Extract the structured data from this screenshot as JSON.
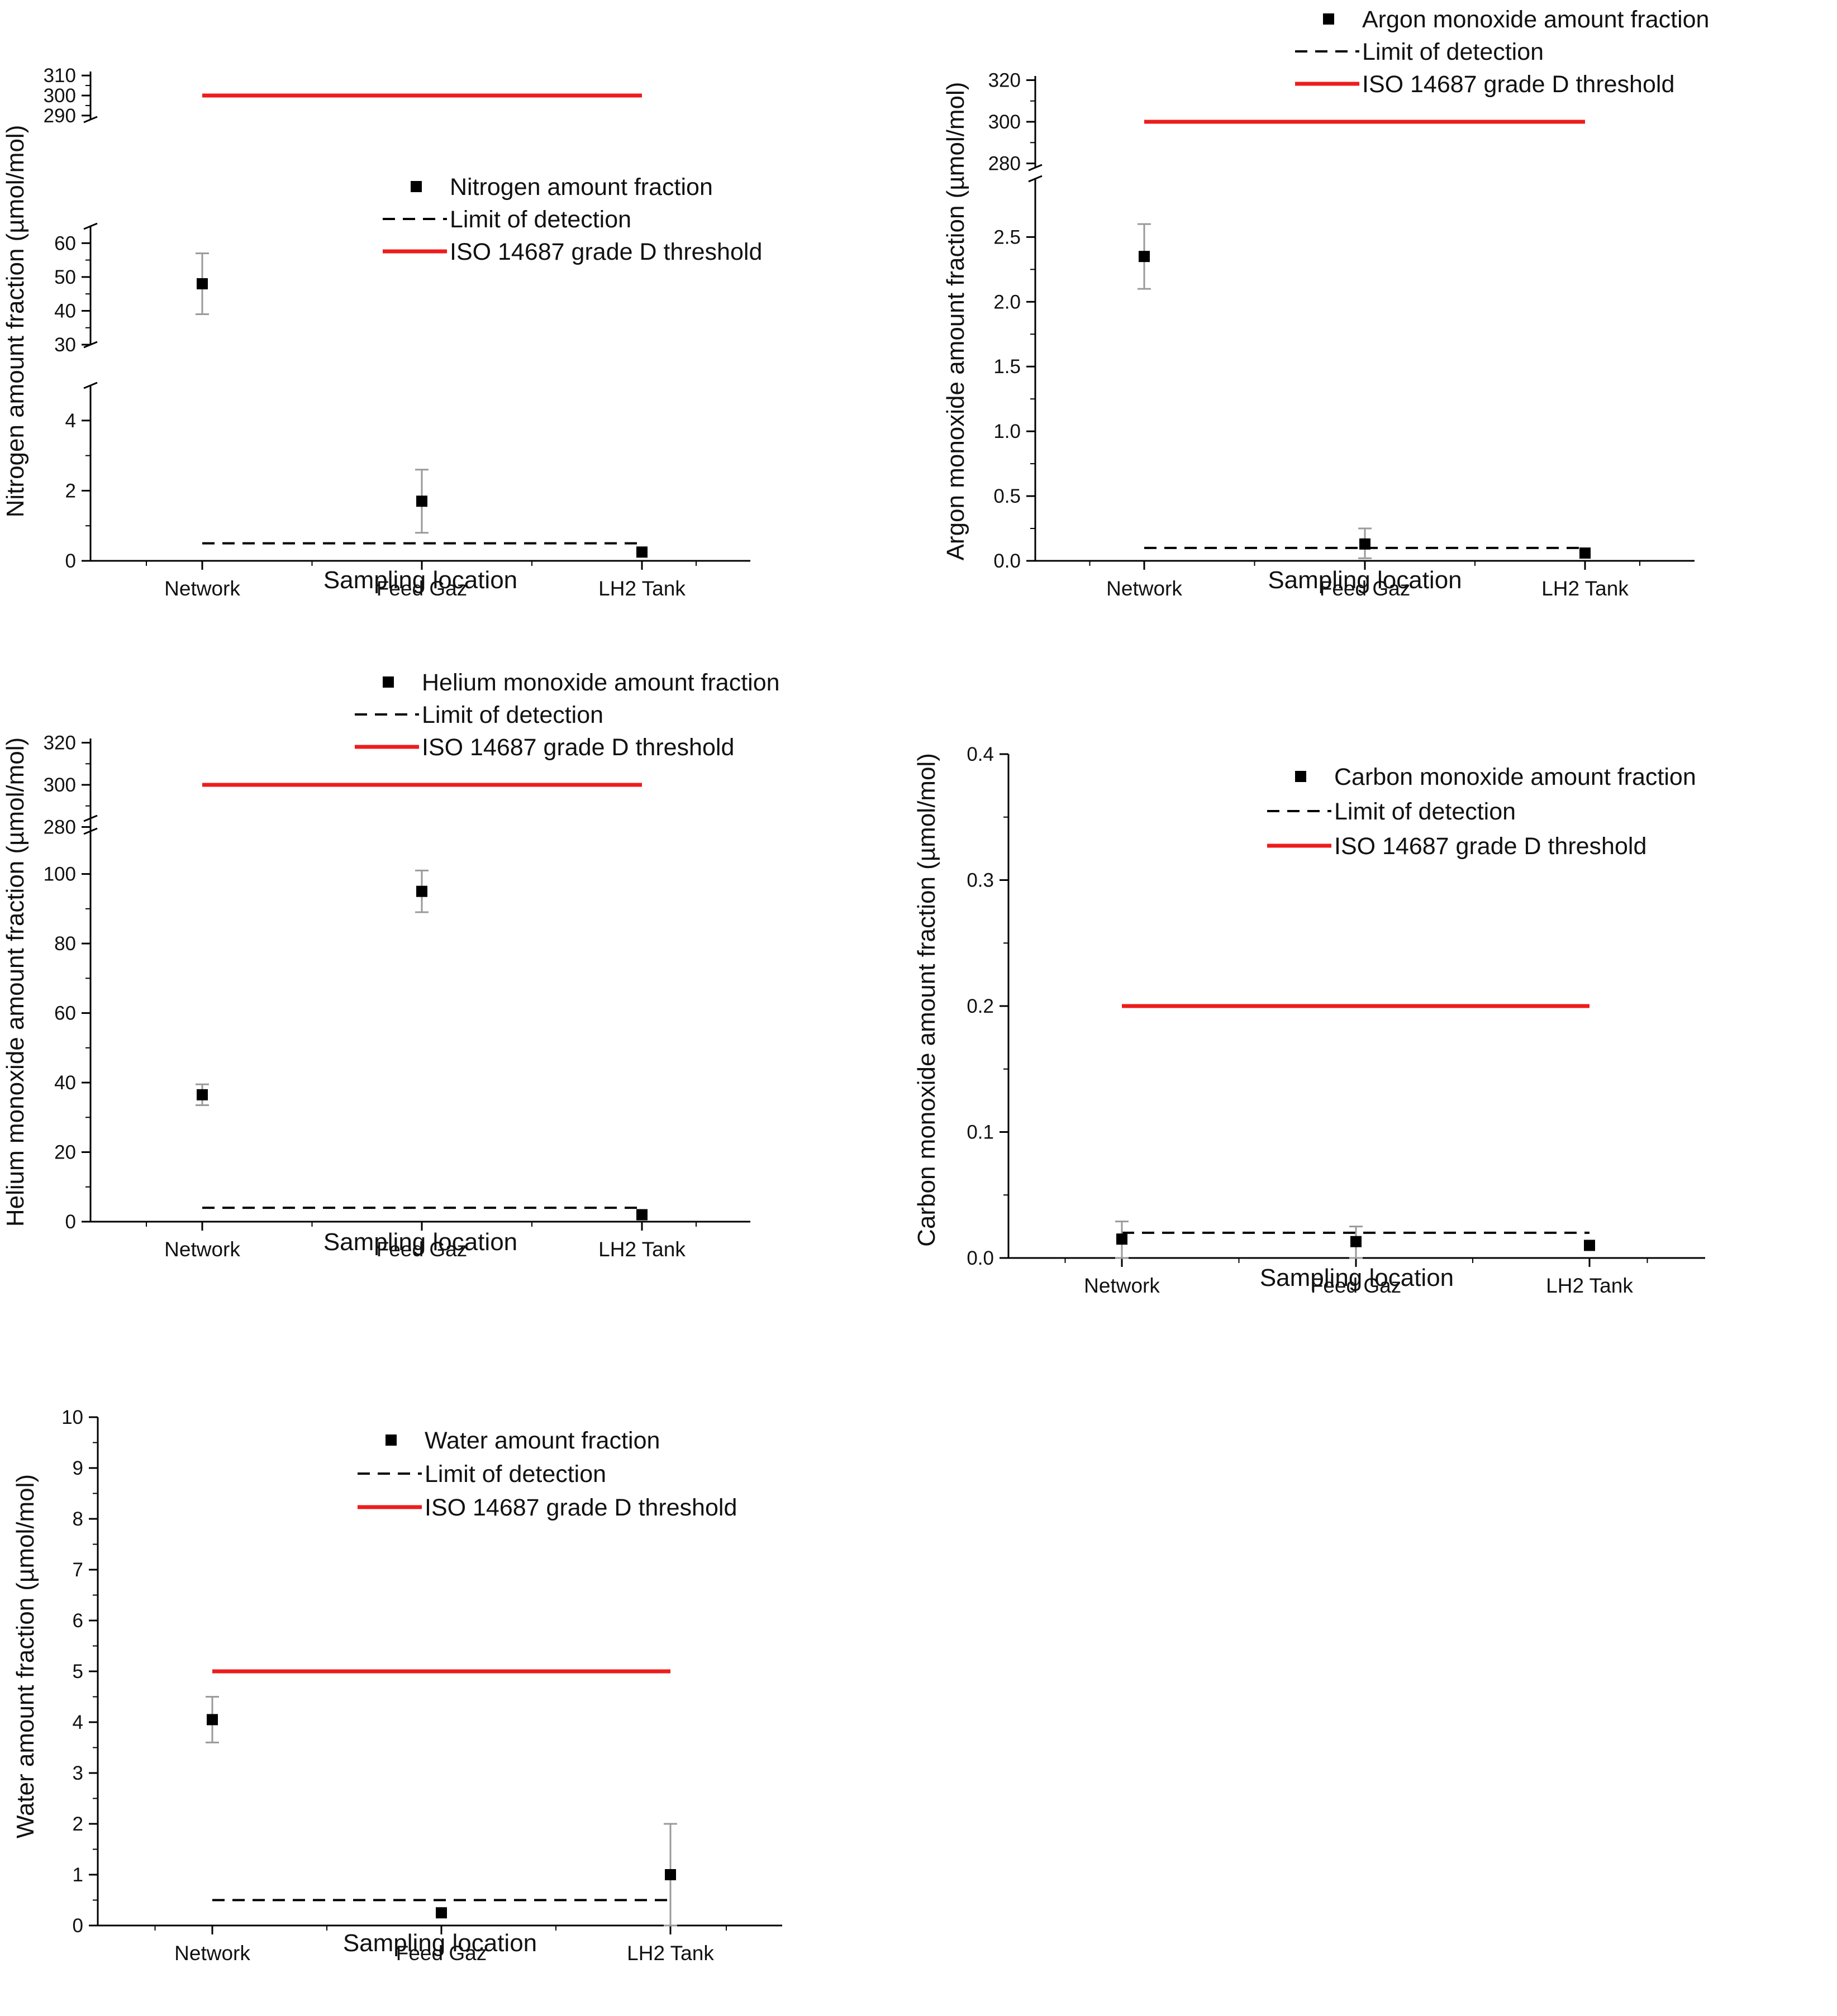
{
  "colors": {
    "threshold": "#ee1c1c",
    "axis": "#000000",
    "marker": "#000000",
    "errorbar": "#9a9a9a",
    "lod": "#000000"
  },
  "legend_labels": {
    "lod": "Limit of detection",
    "threshold": "ISO 14687 grade D threshold"
  },
  "chart_data": [
    {
      "id": "nitrogen",
      "type": "scatter",
      "panel_label": "Nitrogen",
      "categories": [
        "Network",
        "Feed Gaz",
        "LH2 Tank"
      ],
      "xlabel": "Sampling location",
      "ylabel": "Nitrogen amount fraction (µmol/mol)",
      "legend_series": "Nitrogen amount fraction",
      "legend_position": "upper-middle",
      "series": [
        {
          "name": "Nitrogen amount fraction",
          "values": [
            48,
            1.7,
            0.25
          ],
          "err_low": [
            39,
            0.8,
            null
          ],
          "err_high": [
            57,
            2.6,
            null
          ]
        }
      ],
      "limit_of_detection": 0.5,
      "threshold": 300,
      "y_segments": [
        {
          "ylim": [
            0,
            5
          ],
          "ticks": [
            0,
            2,
            4
          ]
        },
        {
          "ylim": [
            30,
            65
          ],
          "ticks": [
            30,
            40,
            50,
            60
          ]
        },
        {
          "ylim": [
            288,
            312
          ],
          "ticks": [
            290,
            300,
            310
          ]
        }
      ]
    },
    {
      "id": "argon",
      "type": "scatter",
      "panel_label": "Argon",
      "categories": [
        "Network",
        "Feed Gaz",
        "LH2 Tank"
      ],
      "xlabel": "Sampling location",
      "ylabel": "Argon monoxide amount fraction (µmol/mol)",
      "legend_series": "Argon monoxide amount fraction",
      "legend_position": "top-right",
      "series": [
        {
          "name": "Argon monoxide amount fraction",
          "values": [
            2.35,
            0.13,
            0.06
          ],
          "err_low": [
            2.1,
            0.02,
            null
          ],
          "err_high": [
            2.6,
            0.25,
            null
          ]
        }
      ],
      "limit_of_detection": 0.1,
      "threshold": 300,
      "y_segments": [
        {
          "ylim": [
            0,
            2.95
          ],
          "ticks": [
            0.0,
            0.5,
            1.0,
            1.5,
            2.0,
            2.5
          ],
          "tick_decimals": 1
        },
        {
          "ylim": [
            278,
            322
          ],
          "ticks": [
            280,
            300,
            320
          ]
        }
      ]
    },
    {
      "id": "helium",
      "type": "scatter",
      "panel_label": "Helium",
      "categories": [
        "Network",
        "Feed Gaz",
        "LH2 Tank"
      ],
      "xlabel": "Sampling location",
      "ylabel": "Helium monoxide amount fraction (µmol/mol)",
      "legend_series": "Helium monoxide amount fraction",
      "legend_position": "top-middle",
      "series": [
        {
          "name": "Helium monoxide amount fraction",
          "values": [
            36.5,
            95,
            2
          ],
          "err_low": [
            33.5,
            89,
            null
          ],
          "err_high": [
            39.5,
            101,
            null
          ]
        }
      ],
      "limit_of_detection": 4,
      "threshold": 300,
      "y_segments": [
        {
          "ylim": [
            0,
            116
          ],
          "ticks": [
            0,
            20,
            40,
            60,
            80,
            100
          ]
        },
        {
          "ylim": [
            278,
            322
          ],
          "ticks": [
            280,
            300,
            320
          ]
        }
      ]
    },
    {
      "id": "carbon",
      "type": "scatter",
      "panel_label": "Carbon",
      "categories": [
        "Network",
        "Feed Gaz",
        "LH2 Tank"
      ],
      "xlabel": "Sampling location",
      "ylabel": "Carbon monoxide amount fraction (µmol/mol)",
      "legend_series": "Carbon monoxide amount fraction",
      "legend_position": "top-right",
      "series": [
        {
          "name": "Carbon monoxide amount fraction",
          "values": [
            0.015,
            0.013,
            0.01
          ],
          "err_low": [
            0.0,
            0.0,
            null
          ],
          "err_high": [
            0.029,
            0.025,
            null
          ]
        }
      ],
      "limit_of_detection": 0.02,
      "threshold": 0.2,
      "y_segments": [
        {
          "ylim": [
            0,
            0.4
          ],
          "ticks": [
            0.0,
            0.1,
            0.2,
            0.3,
            0.4
          ],
          "tick_decimals": 1
        }
      ]
    },
    {
      "id": "water",
      "type": "scatter",
      "panel_label": "Water",
      "categories": [
        "Network",
        "Feed Gaz",
        "LH2 Tank"
      ],
      "xlabel": "Sampling location",
      "ylabel": "Water amount fraction (µmol/mol)",
      "legend_series": "Water amount fraction",
      "legend_position": "top-middle",
      "series": [
        {
          "name": "Water amount fraction",
          "values": [
            4.05,
            0.25,
            1.0
          ],
          "err_low": [
            3.6,
            null,
            0.0
          ],
          "err_high": [
            4.5,
            null,
            2.0
          ]
        }
      ],
      "limit_of_detection": 0.5,
      "threshold": 5,
      "y_segments": [
        {
          "ylim": [
            0,
            10
          ],
          "ticks": [
            0,
            1,
            2,
            3,
            4,
            5,
            6,
            7,
            8,
            9,
            10
          ]
        }
      ]
    }
  ]
}
